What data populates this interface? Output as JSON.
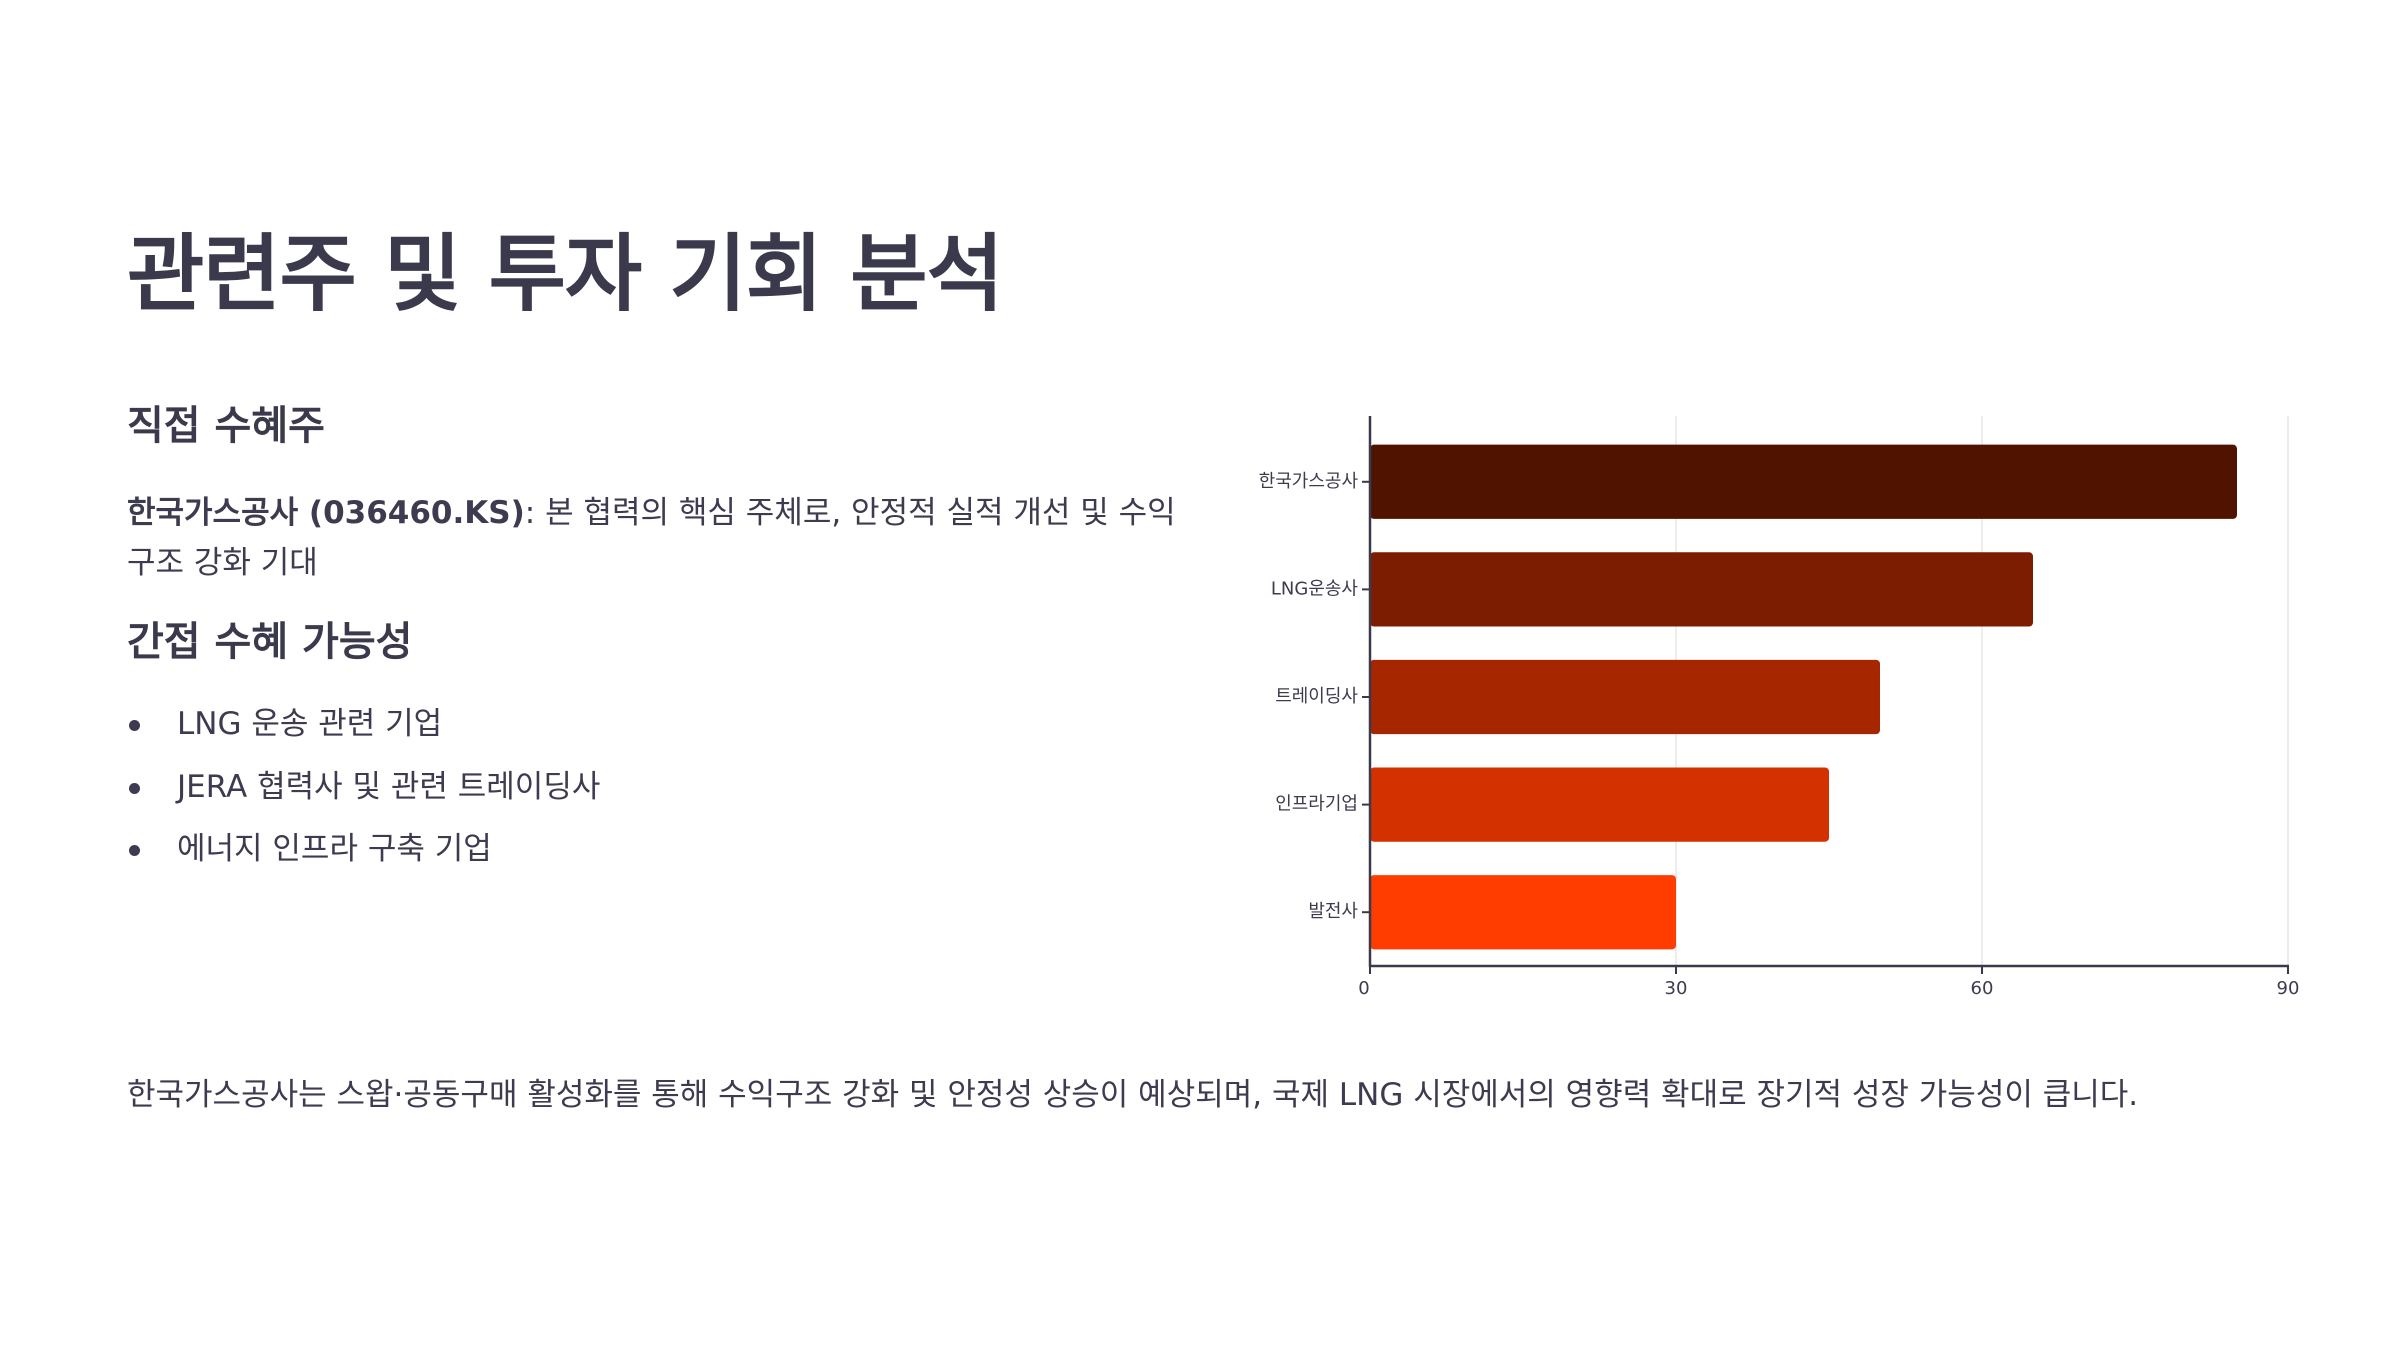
{
  "title": "관련주 및 투자 기회 분석",
  "direct": {
    "heading": "직접 수혜주",
    "company": "한국가스공사 (036460.KS)",
    "description": ": 본 협력의 핵심 주체로, 안정적 실적 개선 및 수익구조 강화 기대"
  },
  "indirect": {
    "heading": "간접 수혜 가능성",
    "items": [
      "LNG 운송 관련 기업",
      "JERA 협력사 및 관련 트레이딩사",
      "에너지 인프라 구축 기업"
    ]
  },
  "summary": "한국가스공사는 스왑·공동구매 활성화를 통해 수익구조 강화 및 안정성 상승이 예상되며, 국제 LNG 시장에서의 영향력 확대로 장기적 성장 가능성이 큽니다.",
  "chart_data": {
    "type": "bar",
    "orientation": "horizontal",
    "title": "",
    "xlabel": "",
    "ylabel": "",
    "categories": [
      "한국가스공사",
      "LNG운송사",
      "트레이딩사",
      "인프라기업",
      "발전사"
    ],
    "values": [
      85,
      65,
      50,
      45,
      30
    ],
    "colors": [
      "#4f1300",
      "#7c1c00",
      "#a62600",
      "#d43100",
      "#ff3d00"
    ],
    "xlim": [
      0,
      90
    ],
    "xticks": [
      0,
      30,
      60,
      90
    ],
    "grid": true,
    "legend": "none"
  }
}
